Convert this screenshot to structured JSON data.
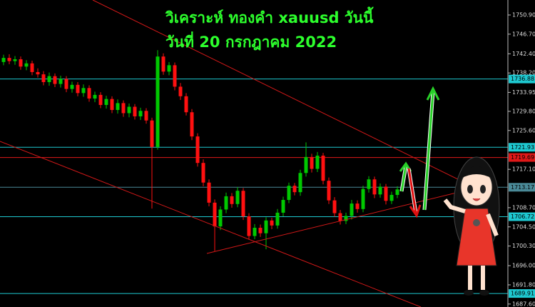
{
  "chart_data": {
    "type": "candlestick",
    "title": "วิเคราะห์ ทองคำ xauusd วันนี้",
    "subtitle": "วันที่ 20  กรกฎาคม 2022",
    "up_color": "#00c800",
    "down_color": "#ff1010",
    "ylim": [
      1686.95,
      1754.18
    ],
    "yticks": [
      {
        "value": 1750.9,
        "label": "1750.90"
      },
      {
        "value": 1746.7,
        "label": "1746.70"
      },
      {
        "value": 1742.4,
        "label": "1742.40"
      },
      {
        "value": 1738.2,
        "label": "1738.20"
      },
      1733.95,
      {
        "value": 1729.8,
        "label": "1729.80"
      },
      {
        "value": 1725.6,
        "label": "1725.60"
      },
      {
        "value": 1717.1,
        "label": "1717.10"
      },
      {
        "value": 1708.7,
        "label": "1708.70"
      },
      {
        "value": 1704.5,
        "label": "1704.50"
      },
      {
        "value": 1700.3,
        "label": "1700.30"
      },
      {
        "value": 1696.0,
        "label": "1696.00"
      },
      {
        "value": 1691.8,
        "label": "1691.80"
      },
      {
        "value": 1687.6,
        "label": "1687.60"
      }
    ],
    "levels": [
      {
        "value": 1736.88,
        "color": "#1ec8d0"
      },
      {
        "value": 1721.93,
        "color": "#1ec8d0"
      },
      {
        "value": 1719.69,
        "color": "#e01818"
      },
      {
        "value": 1713.17,
        "color": "#4a8a98"
      },
      {
        "value": 1706.72,
        "color": "#1ec8d0"
      },
      {
        "value": 1689.91,
        "color": "#1ec8d0"
      }
    ],
    "open": [
      1740.6,
      1741.5,
      1740.8,
      1741.2,
      1739.6,
      1740.3,
      1738.4,
      1737.9,
      1736.2,
      1737.5,
      1735.8,
      1736.9,
      1734.7,
      1735.6,
      1733.8,
      1734.9,
      1732.6,
      1733.4,
      1731.2,
      1732.5,
      1730.1,
      1731.6,
      1729.4,
      1730.8,
      1728.7,
      1729.9,
      1727.8,
      1722.0,
      1741.8,
      1738.5,
      1739.9,
      1735.2,
      1733.1,
      1729.6,
      1724.3,
      1718.5,
      1714.2,
      1709.8,
      1704.6,
      1708.3,
      1711.2,
      1709.5,
      1712.4,
      1706.8,
      1702.5,
      1704.3,
      1703.1,
      1705.9,
      1704.8,
      1707.6,
      1710.4,
      1713.5,
      1712.1,
      1716.3,
      1719.8,
      1717.2,
      1720.1,
      1714.6,
      1710.3,
      1707.5,
      1705.8,
      1706.9,
      1709.6,
      1708.4,
      1712.8,
      1714.9,
      1711.6,
      1713.3,
      1710.2,
      1711.5
    ],
    "high": [
      1742.2,
      1742.3,
      1741.9,
      1741.8,
      1741.0,
      1740.9,
      1739.2,
      1738.6,
      1738.3,
      1738.1,
      1737.6,
      1737.5,
      1736.3,
      1736.2,
      1735.7,
      1735.5,
      1734.1,
      1734.0,
      1733.2,
      1733.1,
      1732.4,
      1732.2,
      1731.5,
      1731.4,
      1730.6,
      1730.5,
      1728.4,
      1743.2,
      1742.5,
      1740.6,
      1740.5,
      1736.0,
      1733.8,
      1730.3,
      1725.0,
      1719.3,
      1714.9,
      1710.5,
      1709.0,
      1712.0,
      1711.9,
      1713.2,
      1713.0,
      1707.5,
      1705.1,
      1705.0,
      1706.6,
      1706.5,
      1708.4,
      1711.1,
      1714.2,
      1714.1,
      1717.0,
      1723.0,
      1720.5,
      1720.9,
      1720.7,
      1715.3,
      1711.0,
      1708.2,
      1707.6,
      1710.4,
      1710.3,
      1713.5,
      1715.6,
      1715.5,
      1714.0,
      1713.9,
      1712.2,
      1713.4
    ],
    "low": [
      1739.9,
      1740.1,
      1740.0,
      1738.9,
      1738.8,
      1737.7,
      1737.2,
      1735.5,
      1735.4,
      1735.1,
      1735.0,
      1734.0,
      1733.9,
      1733.1,
      1733.0,
      1731.9,
      1731.8,
      1730.5,
      1730.4,
      1729.4,
      1729.3,
      1728.6,
      1728.5,
      1728.0,
      1727.9,
      1727.1,
      1708.5,
      1721.4,
      1737.8,
      1737.7,
      1734.4,
      1732.3,
      1728.9,
      1723.5,
      1717.7,
      1713.4,
      1709.0,
      1699.2,
      1703.8,
      1707.5,
      1708.7,
      1708.8,
      1706.0,
      1701.7,
      1701.8,
      1702.3,
      1699.6,
      1704.0,
      1704.1,
      1706.8,
      1709.7,
      1711.4,
      1711.3,
      1715.5,
      1716.4,
      1716.5,
      1713.8,
      1709.5,
      1706.7,
      1705.0,
      1705.1,
      1706.1,
      1707.6,
      1707.7,
      1712.0,
      1710.8,
      1710.9,
      1709.4,
      1709.5,
      1710.8
    ],
    "close": [
      1741.5,
      1740.8,
      1741.2,
      1739.6,
      1740.3,
      1738.4,
      1737.9,
      1736.2,
      1737.5,
      1735.8,
      1736.9,
      1734.7,
      1735.6,
      1733.8,
      1734.9,
      1732.6,
      1733.4,
      1731.2,
      1732.5,
      1730.1,
      1731.6,
      1729.4,
      1730.8,
      1728.7,
      1729.9,
      1727.8,
      1722.0,
      1741.8,
      1738.5,
      1739.9,
      1735.2,
      1733.1,
      1729.6,
      1724.3,
      1718.5,
      1714.2,
      1709.8,
      1704.6,
      1708.3,
      1711.2,
      1709.5,
      1712.4,
      1706.8,
      1702.5,
      1704.3,
      1703.1,
      1705.9,
      1704.8,
      1707.6,
      1710.4,
      1713.5,
      1712.1,
      1716.3,
      1719.8,
      1717.2,
      1720.1,
      1714.6,
      1710.3,
      1707.5,
      1705.8,
      1706.9,
      1709.6,
      1708.4,
      1712.8,
      1714.9,
      1711.6,
      1713.3,
      1710.2,
      1711.5,
      1712.7
    ]
  }
}
